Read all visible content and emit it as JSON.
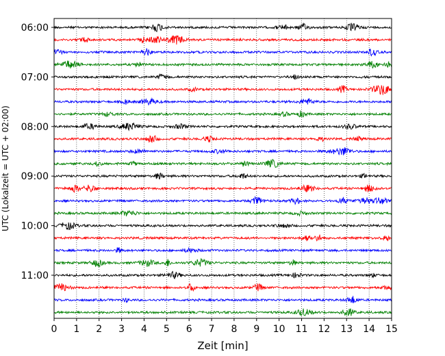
{
  "chart_data": {
    "type": "line",
    "title": "",
    "xlabel": "Zeit  [min]",
    "ylabel": "UTC (Lokalzeit = UTC + 02:00)",
    "xlim": [
      0,
      15
    ],
    "x_ticks": [
      0,
      1,
      2,
      3,
      4,
      5,
      6,
      7,
      8,
      9,
      10,
      11,
      12,
      13,
      14,
      15
    ],
    "x_tick_labels": [
      "0",
      "1",
      "2",
      "3",
      "4",
      "5",
      "6",
      "7",
      "8",
      "9",
      "10",
      "11",
      "12",
      "13",
      "14",
      "15"
    ],
    "y_tick_labels": [
      "06:00",
      "07:00",
      "08:00",
      "09:00",
      "10:00",
      "11:00"
    ],
    "row_minutes": 15,
    "grid": "vertical-dotted",
    "colors": [
      "#000000",
      "#ff0000",
      "#0000ff",
      "#008000"
    ],
    "traces": [
      {
        "start": "06:00",
        "color": "#000000"
      },
      {
        "start": "06:15",
        "color": "#ff0000"
      },
      {
        "start": "06:30",
        "color": "#0000ff"
      },
      {
        "start": "06:45",
        "color": "#008000"
      },
      {
        "start": "07:00",
        "color": "#000000"
      },
      {
        "start": "07:15",
        "color": "#ff0000"
      },
      {
        "start": "07:30",
        "color": "#0000ff"
      },
      {
        "start": "07:45",
        "color": "#008000"
      },
      {
        "start": "08:00",
        "color": "#000000"
      },
      {
        "start": "08:15",
        "color": "#ff0000"
      },
      {
        "start": "08:30",
        "color": "#0000ff"
      },
      {
        "start": "08:45",
        "color": "#008000"
      },
      {
        "start": "09:00",
        "color": "#000000"
      },
      {
        "start": "09:15",
        "color": "#ff0000"
      },
      {
        "start": "09:30",
        "color": "#0000ff"
      },
      {
        "start": "09:45",
        "color": "#008000"
      },
      {
        "start": "10:00",
        "color": "#000000"
      },
      {
        "start": "10:15",
        "color": "#ff0000"
      },
      {
        "start": "10:30",
        "color": "#0000ff"
      },
      {
        "start": "10:45",
        "color": "#008000"
      },
      {
        "start": "11:00",
        "color": "#000000"
      },
      {
        "start": "11:15",
        "color": "#ff0000"
      },
      {
        "start": "11:30",
        "color": "#0000ff"
      },
      {
        "start": "11:45",
        "color": "#008000"
      }
    ]
  }
}
